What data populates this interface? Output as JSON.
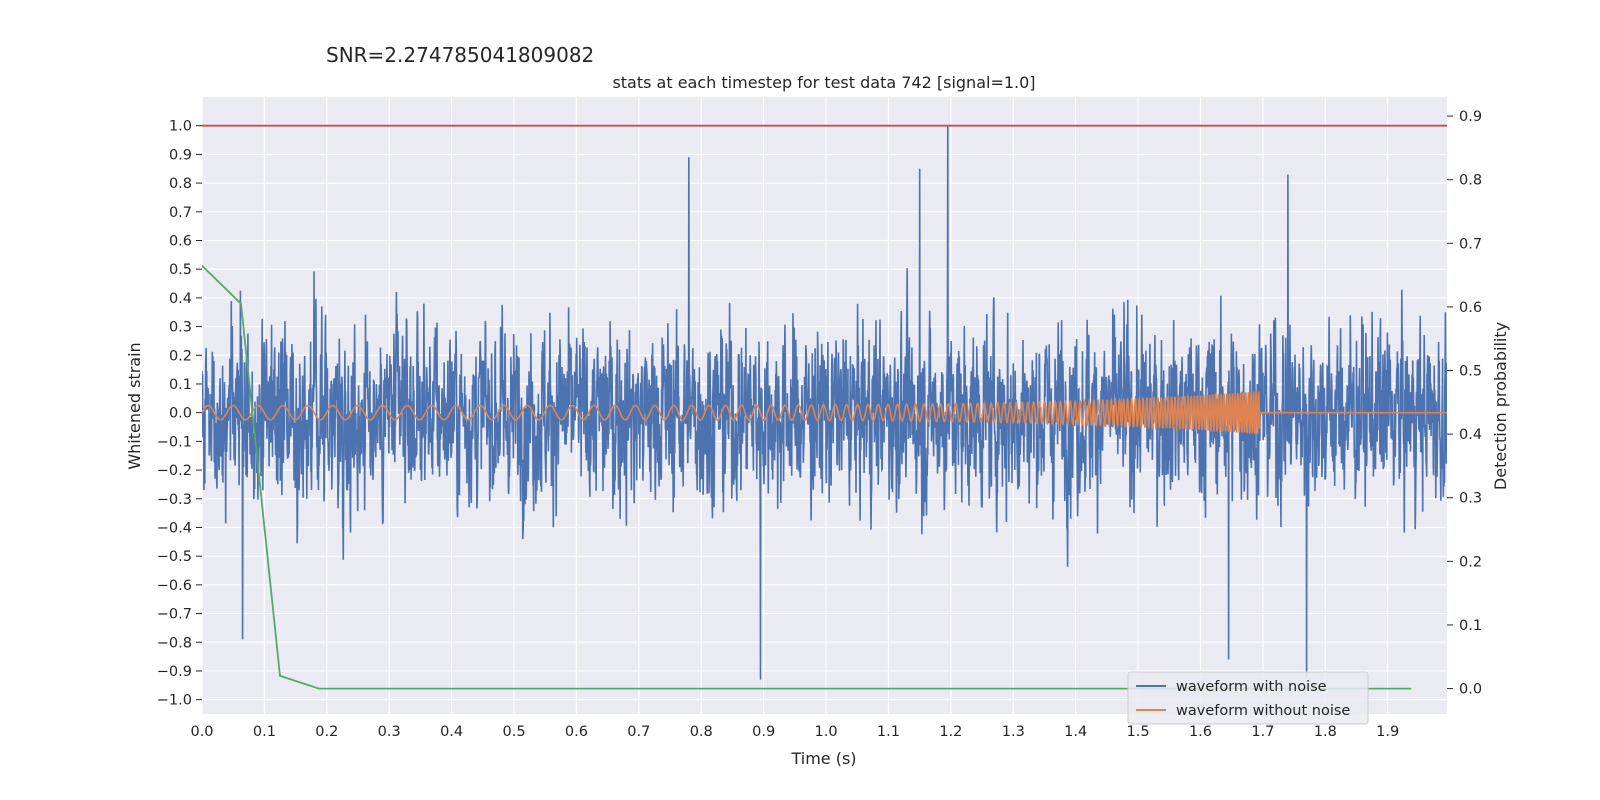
{
  "header": {
    "snr_text": "SNR=2.274785041809082"
  },
  "chart_data": {
    "type": "line",
    "title": "stats at each timestep for test data 742 [signal=1.0]",
    "xlabel": "Time (s)",
    "ylabel": "Whitened strain",
    "y2label": "Detection probability",
    "xlim": [
      0.0,
      1.995
    ],
    "ylim": [
      -1.05,
      1.1
    ],
    "y2lim": [
      -0.04,
      0.93
    ],
    "x_ticks": [
      "0.0",
      "0.1",
      "0.2",
      "0.3",
      "0.4",
      "0.5",
      "0.6",
      "0.7",
      "0.8",
      "0.9",
      "1.0",
      "1.1",
      "1.2",
      "1.3",
      "1.4",
      "1.5",
      "1.6",
      "1.7",
      "1.8",
      "1.9"
    ],
    "y_ticks": [
      "1.0",
      "0.9",
      "0.8",
      "0.7",
      "0.6",
      "0.5",
      "0.4",
      "0.3",
      "0.2",
      "0.1",
      "0.0",
      "−0.1",
      "−0.2",
      "−0.3",
      "−0.4",
      "−0.5",
      "−0.6",
      "−0.7",
      "−0.8",
      "−0.9",
      "−1.0"
    ],
    "y2_ticks": [
      "0.9",
      "0.8",
      "0.7",
      "0.6",
      "0.5",
      "0.4",
      "0.3",
      "0.2",
      "0.1",
      "0.0"
    ],
    "grid": true,
    "legend_position": "bottom-right",
    "series": [
      {
        "name": "waveform with noise",
        "color": "#4c72b0",
        "axis": "left",
        "description_kind": "noisy strain spanning roughly -0.93 to 1.0",
        "x_range": [
          0.0,
          1.995
        ],
        "amplitude_peak": 1.0,
        "amplitude_min": -0.93
      },
      {
        "name": "waveform without noise",
        "color": "#dd8452",
        "axis": "left",
        "chirp": {
          "x_start": 0.0,
          "x_merger": 1.695,
          "amp_start": 0.025,
          "amp_merger": 0.075,
          "freq_start_hz": 25,
          "freq_merger_hz": 250
        }
      },
      {
        "name": "",
        "color": "#55a868",
        "axis": "right",
        "x": [
          0.0,
          0.0625,
          0.125,
          0.1875,
          1.9375
        ],
        "y": [
          0.665,
          0.605,
          0.02,
          0.0,
          0.0
        ]
      },
      {
        "name": "",
        "color": "#c44e52",
        "axis": "left",
        "x": [
          0.0,
          1.995
        ],
        "y": [
          1.0,
          1.0
        ]
      }
    ]
  }
}
